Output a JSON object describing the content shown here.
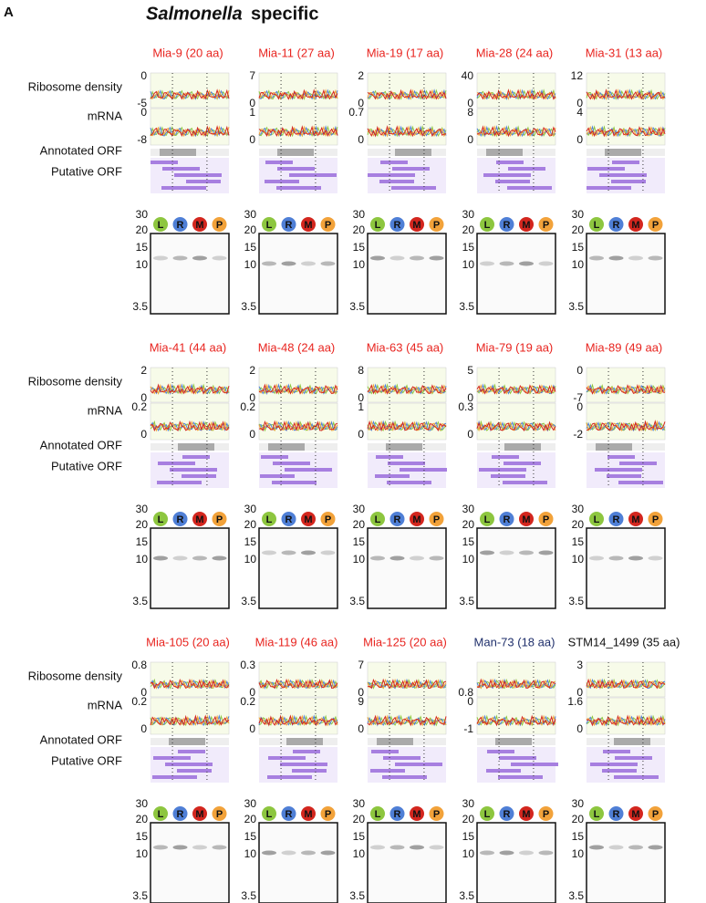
{
  "header": {
    "label": "A",
    "title_italic": "Salmonella",
    "title_rest": "specific"
  },
  "row_labels": [
    "Ribosome density",
    "mRNA",
    "Annotated ORF",
    "Putative ORF"
  ],
  "lanes": [
    "L",
    "R",
    "M",
    "P"
  ],
  "markers": [
    "30",
    "20",
    "15",
    "10",
    "3.5"
  ],
  "panels": [
    {
      "title": "Mia-9 (20 aa)",
      "color": "#e8241f",
      "ribo": [
        "0",
        "-5"
      ],
      "mrna": [
        "0",
        "-8"
      ]
    },
    {
      "title": "Mia-11 (27 aa)",
      "color": "#e8241f",
      "ribo": [
        "7",
        "0"
      ],
      "mrna": [
        "1",
        "0"
      ]
    },
    {
      "title": "Mia-19 (17 aa)",
      "color": "#e8241f",
      "ribo": [
        "2",
        "0"
      ],
      "mrna": [
        "0.7",
        "0"
      ]
    },
    {
      "title": "Mia-28 (24 aa)",
      "color": "#e8241f",
      "ribo": [
        "40",
        "0"
      ],
      "mrna": [
        "8",
        "0"
      ]
    },
    {
      "title": "Mia-31 (13 aa)",
      "color": "#e8241f",
      "ribo": [
        "12",
        "0"
      ],
      "mrna": [
        "4",
        "0"
      ]
    },
    {
      "title": "Mia-41 (44 aa)",
      "color": "#e8241f",
      "ribo": [
        "2",
        "0"
      ],
      "mrna": [
        "0.2",
        "0"
      ]
    },
    {
      "title": "Mia-48 (24 aa)",
      "color": "#e8241f",
      "ribo": [
        "2",
        "0"
      ],
      "mrna": [
        "0.2",
        "0"
      ]
    },
    {
      "title": "Mia-63 (45 aa)",
      "color": "#e8241f",
      "ribo": [
        "8",
        "0"
      ],
      "mrna": [
        "1",
        "0"
      ]
    },
    {
      "title": "Mia-79 (19 aa)",
      "color": "#e8241f",
      "ribo": [
        "5",
        "0"
      ],
      "mrna": [
        "0.3",
        "0"
      ]
    },
    {
      "title": "Mia-89 (49 aa)",
      "color": "#e8241f",
      "ribo": [
        "0",
        "-7"
      ],
      "mrna": [
        "0",
        "-2"
      ]
    },
    {
      "title": "Mia-105 (20 aa)",
      "color": "#e8241f",
      "ribo": [
        "0.8",
        "0"
      ],
      "mrna": [
        "0.2",
        "0"
      ]
    },
    {
      "title": "Mia-119 (46 aa)",
      "color": "#e8241f",
      "ribo": [
        "0.3",
        "0"
      ],
      "mrna": [
        "0.2",
        "0"
      ]
    },
    {
      "title": "Mia-125 (20 aa)",
      "color": "#e8241f",
      "ribo": [
        "7",
        "0"
      ],
      "mrna": [
        "9",
        "0"
      ]
    },
    {
      "title": "Man-73 (18 aa)",
      "color": "#1f2f6b",
      "ribo": [
        "0.8"
      ],
      "mrna": [
        "0",
        "-1"
      ]
    },
    {
      "title": "STM14_1499 (35 aa)",
      "color": "#111111",
      "ribo": [
        "3",
        "0"
      ],
      "mrna": [
        "1.6",
        "0"
      ]
    }
  ]
}
